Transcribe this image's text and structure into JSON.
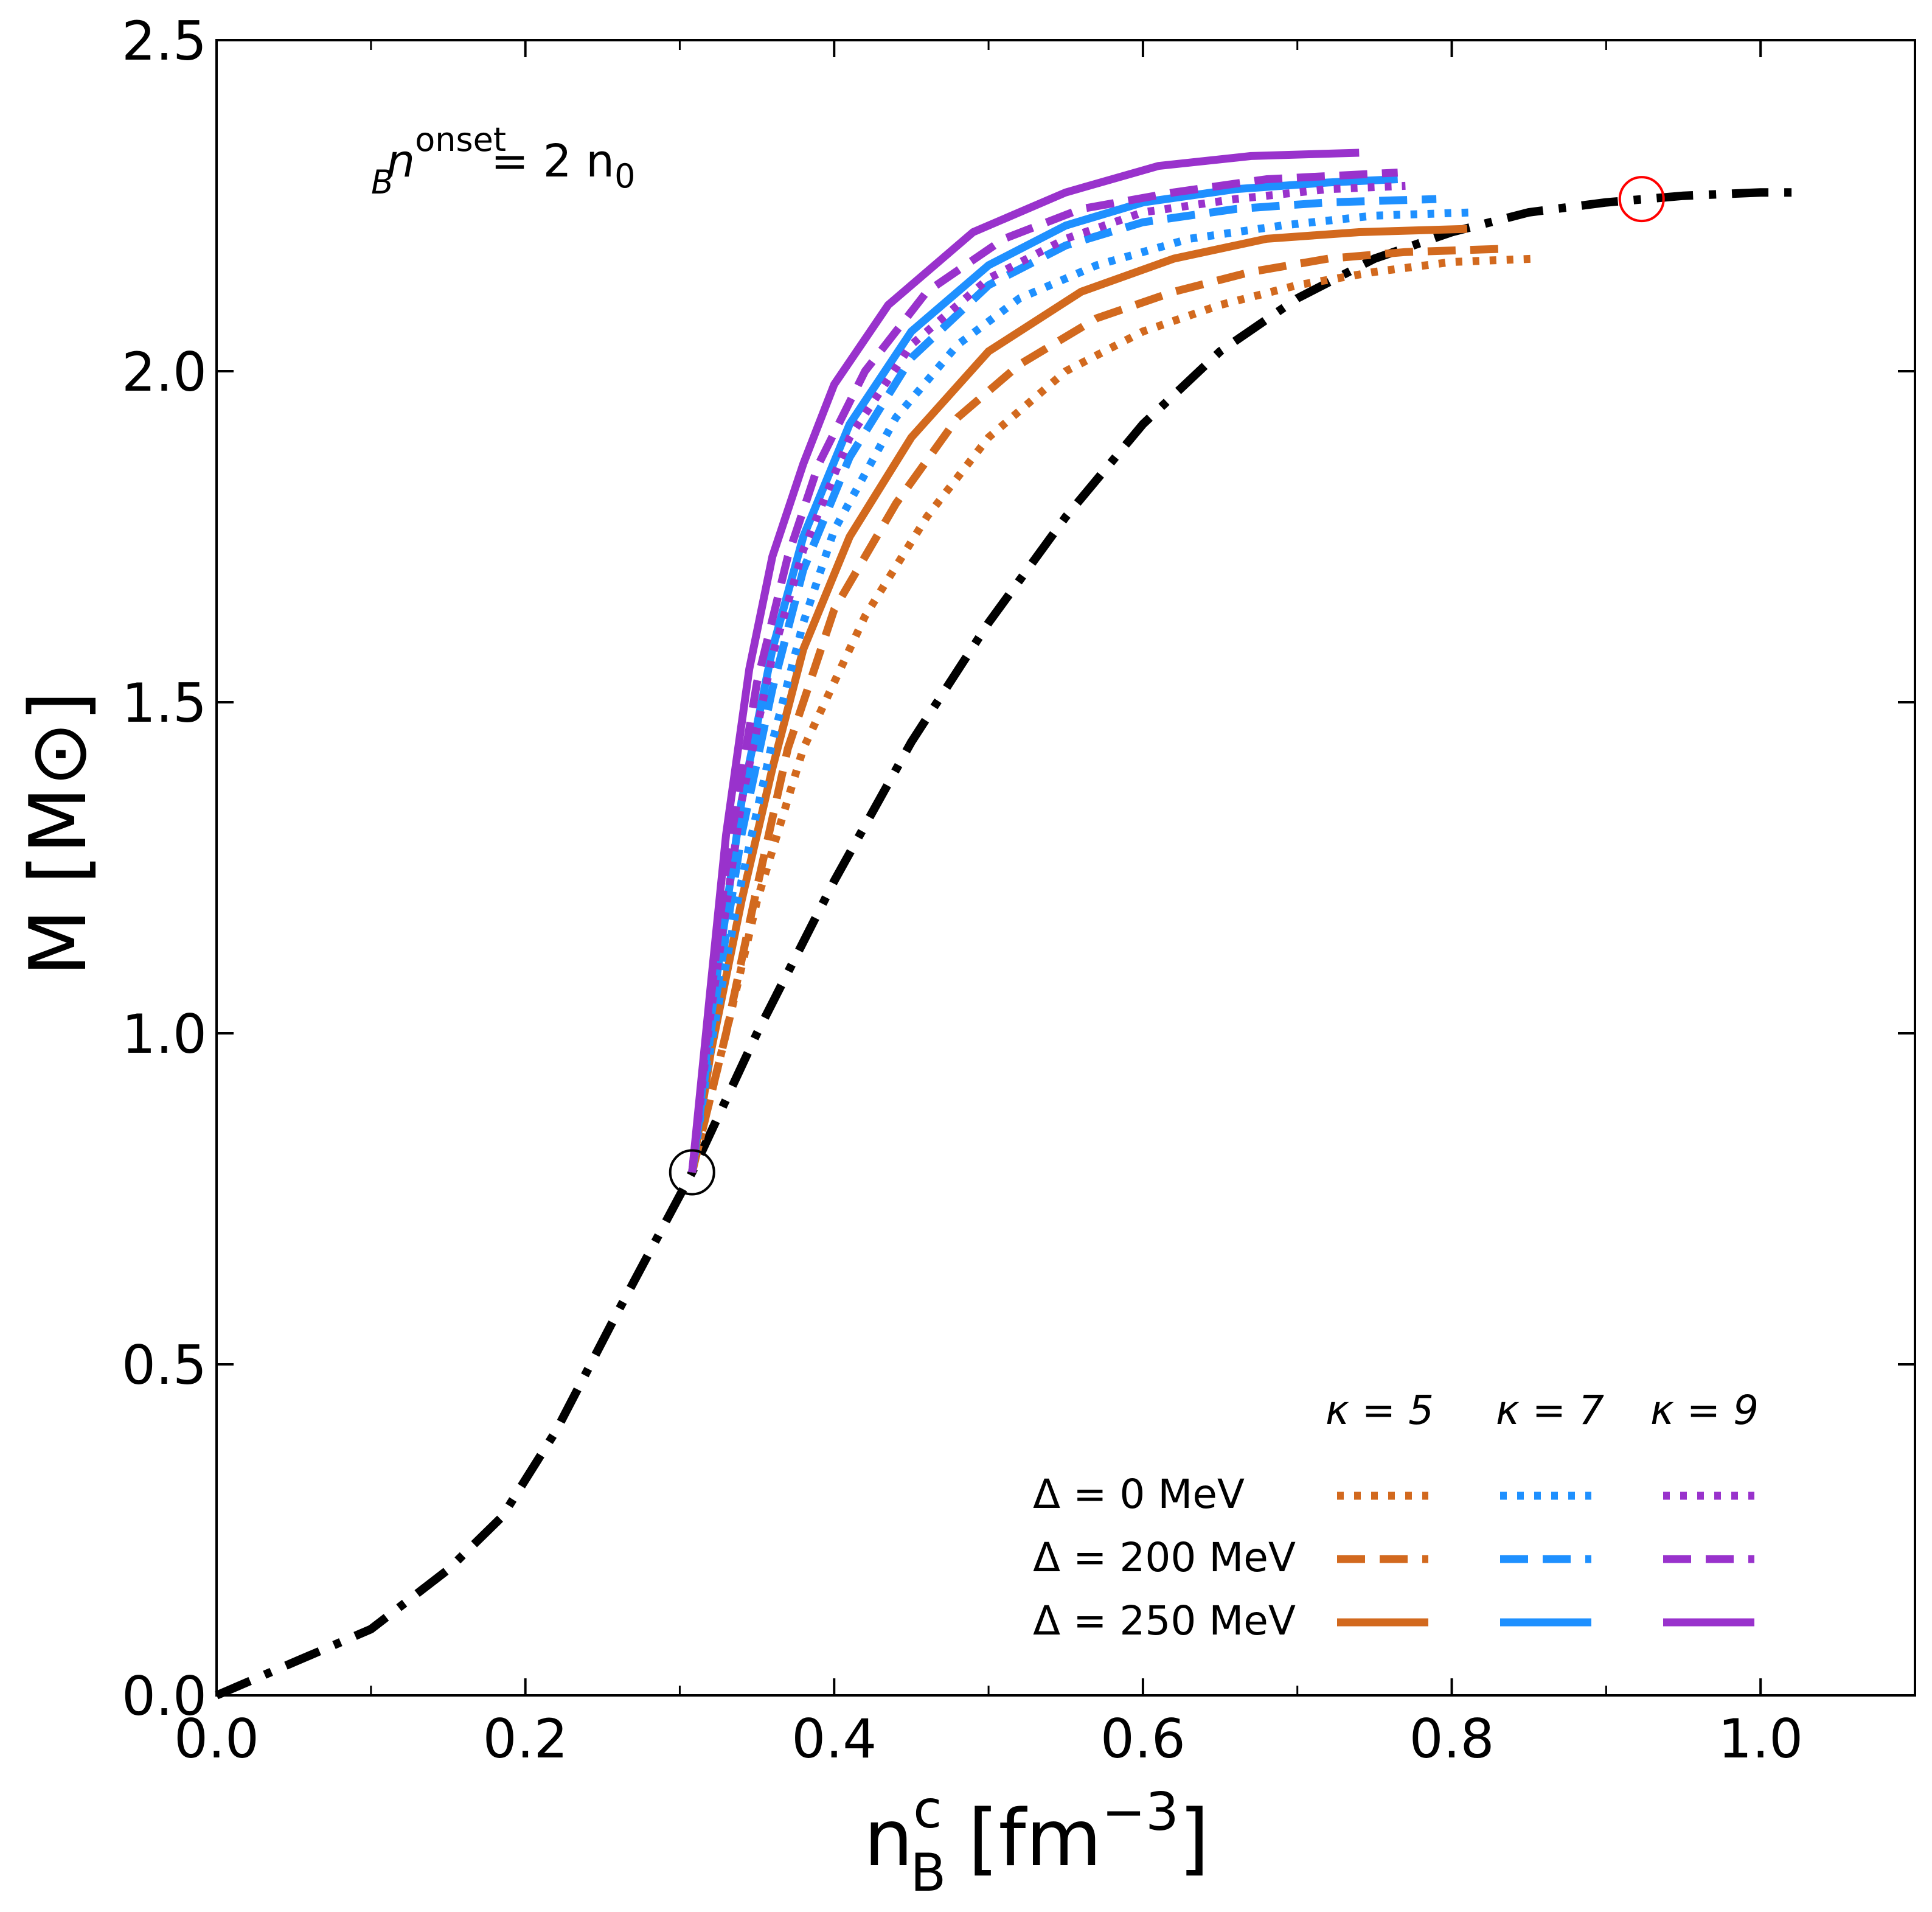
{
  "chart_data": {
    "type": "line",
    "xlabel": "n_B^c [fm^-3]",
    "xlabel_main": "n",
    "xlabel_sup": "c",
    "xlabel_sub": "B",
    "xlabel_units": "[fm",
    "xlabel_units_sup": "−3",
    "xlabel_units_close": "]",
    "ylabel": "M [M⊙]",
    "xlim": [
      0.0,
      1.1
    ],
    "ylim": [
      0.0,
      2.5
    ],
    "x_ticks": [
      0.0,
      0.2,
      0.4,
      0.6,
      0.8,
      1.0
    ],
    "x_tick_labels": [
      "0.0",
      "0.2",
      "0.4",
      "0.6",
      "0.8",
      "1.0"
    ],
    "y_ticks": [
      0.0,
      0.5,
      1.0,
      1.5,
      2.0,
      2.5
    ],
    "y_tick_labels": [
      "0.0",
      "0.5",
      "1.0",
      "1.5",
      "2.0",
      "2.5"
    ],
    "grid": false,
    "legend_position": "bottom-right",
    "annotation": {
      "base": "n",
      "sub": "B",
      "sup": "onset",
      "rest": "=  2 n",
      "rest_sub": "0"
    },
    "legend": {
      "kappa_labels": [
        "κ = 5",
        "κ = 7",
        "κ = 9"
      ],
      "delta_labels": [
        "Δ = 0 MeV",
        "Δ = 200 MeV",
        "Δ = 250 MeV"
      ]
    },
    "colors": {
      "kappa5": "#d2691e",
      "kappa7": "#1e90ff",
      "kappa9": "#9932cc",
      "hadronic": "#000000",
      "onset_marker": "#000000",
      "max_marker": "#ff0000"
    },
    "markers": [
      {
        "name": "onset",
        "x": 0.308,
        "y": 0.79,
        "color": "#000000"
      },
      {
        "name": "hadronic-maximum",
        "x": 0.923,
        "y": 2.26,
        "color": "#ff0000"
      }
    ],
    "series": [
      {
        "key": "hadronic",
        "style": "dashdot",
        "color": "#000000",
        "x": [
          0.0,
          0.05,
          0.1,
          0.15,
          0.185,
          0.22,
          0.26,
          0.308,
          0.35,
          0.4,
          0.45,
          0.5,
          0.55,
          0.6,
          0.65,
          0.7,
          0.75,
          0.8,
          0.85,
          0.9,
          0.95,
          1.0,
          1.03
        ],
        "y": [
          0.0,
          0.05,
          0.1,
          0.19,
          0.27,
          0.4,
          0.58,
          0.79,
          1.0,
          1.23,
          1.44,
          1.62,
          1.78,
          1.92,
          2.03,
          2.11,
          2.17,
          2.21,
          2.24,
          2.255,
          2.265,
          2.27,
          2.27
        ]
      },
      {
        "key": "k5-d0",
        "style": "dotted",
        "color": "#d2691e",
        "x": [
          0.308,
          0.33,
          0.35,
          0.38,
          0.42,
          0.46,
          0.5,
          0.55,
          0.6,
          0.65,
          0.7,
          0.75,
          0.8,
          0.855
        ],
        "y": [
          0.79,
          1.0,
          1.2,
          1.43,
          1.63,
          1.78,
          1.9,
          2.0,
          2.06,
          2.1,
          2.13,
          2.15,
          2.165,
          2.17
        ]
      },
      {
        "key": "k5-d200",
        "style": "dashed",
        "color": "#d2691e",
        "x": [
          0.308,
          0.33,
          0.35,
          0.37,
          0.4,
          0.44,
          0.48,
          0.52,
          0.57,
          0.62,
          0.67,
          0.72,
          0.77,
          0.835
        ],
        "y": [
          0.79,
          1.0,
          1.22,
          1.43,
          1.64,
          1.8,
          1.93,
          2.01,
          2.08,
          2.12,
          2.15,
          2.17,
          2.18,
          2.185
        ]
      },
      {
        "key": "k5-d250",
        "style": "solid",
        "color": "#d2691e",
        "x": [
          0.308,
          0.32,
          0.34,
          0.36,
          0.38,
          0.41,
          0.45,
          0.5,
          0.56,
          0.62,
          0.68,
          0.74,
          0.81
        ],
        "y": [
          0.79,
          0.97,
          1.2,
          1.4,
          1.58,
          1.75,
          1.9,
          2.03,
          2.12,
          2.17,
          2.2,
          2.21,
          2.215
        ]
      },
      {
        "key": "k7-d0",
        "style": "dotted",
        "color": "#1e90ff",
        "x": [
          0.308,
          0.32,
          0.34,
          0.36,
          0.38,
          0.4,
          0.44,
          0.48,
          0.52,
          0.57,
          0.63,
          0.69,
          0.75,
          0.815
        ],
        "y": [
          0.79,
          0.98,
          1.23,
          1.44,
          1.62,
          1.76,
          1.93,
          2.04,
          2.11,
          2.16,
          2.2,
          2.22,
          2.235,
          2.24
        ]
      },
      {
        "key": "k7-d200",
        "style": "dashed",
        "color": "#1e90ff",
        "x": [
          0.308,
          0.32,
          0.34,
          0.36,
          0.38,
          0.41,
          0.45,
          0.5,
          0.55,
          0.6,
          0.66,
          0.72,
          0.79
        ],
        "y": [
          0.79,
          1.0,
          1.3,
          1.52,
          1.7,
          1.87,
          2.02,
          2.13,
          2.19,
          2.225,
          2.245,
          2.255,
          2.26
        ]
      },
      {
        "key": "k7-d250",
        "style": "solid",
        "color": "#1e90ff",
        "x": [
          0.308,
          0.32,
          0.34,
          0.36,
          0.38,
          0.41,
          0.45,
          0.5,
          0.55,
          0.6,
          0.66,
          0.72,
          0.765
        ],
        "y": [
          0.79,
          1.02,
          1.35,
          1.58,
          1.75,
          1.92,
          2.06,
          2.16,
          2.22,
          2.255,
          2.275,
          2.285,
          2.29
        ]
      },
      {
        "key": "k9-d0",
        "style": "dotted",
        "color": "#9932cc",
        "x": [
          0.308,
          0.32,
          0.34,
          0.36,
          0.38,
          0.41,
          0.45,
          0.5,
          0.55,
          0.6,
          0.66,
          0.72,
          0.77
        ],
        "y": [
          0.79,
          1.03,
          1.35,
          1.57,
          1.73,
          1.9,
          2.04,
          2.14,
          2.2,
          2.24,
          2.26,
          2.275,
          2.28
        ]
      },
      {
        "key": "k9-d200",
        "style": "dashed",
        "color": "#9932cc",
        "x": [
          0.308,
          0.32,
          0.33,
          0.35,
          0.37,
          0.39,
          0.42,
          0.46,
          0.51,
          0.56,
          0.62,
          0.68,
          0.765
        ],
        "y": [
          0.79,
          1.05,
          1.25,
          1.53,
          1.72,
          1.86,
          2.0,
          2.12,
          2.2,
          2.245,
          2.27,
          2.29,
          2.3
        ]
      },
      {
        "key": "k9-d250",
        "style": "solid",
        "color": "#9932cc",
        "x": [
          0.308,
          0.32,
          0.33,
          0.345,
          0.36,
          0.38,
          0.4,
          0.435,
          0.49,
          0.55,
          0.61,
          0.67,
          0.74
        ],
        "y": [
          0.79,
          1.07,
          1.3,
          1.55,
          1.72,
          1.86,
          1.98,
          2.1,
          2.21,
          2.27,
          2.31,
          2.325,
          2.33
        ]
      }
    ],
    "legend_rows": [
      {
        "delta_index": 0,
        "style": "dotted",
        "series": [
          "k5-d0",
          "k7-d0",
          "k9-d0"
        ]
      },
      {
        "delta_index": 1,
        "style": "dashed",
        "series": [
          "k5-d200",
          "k7-d200",
          "k9-d200"
        ]
      },
      {
        "delta_index": 2,
        "style": "solid",
        "series": [
          "k5-d250",
          "k7-d250",
          "k9-d250"
        ]
      }
    ]
  }
}
